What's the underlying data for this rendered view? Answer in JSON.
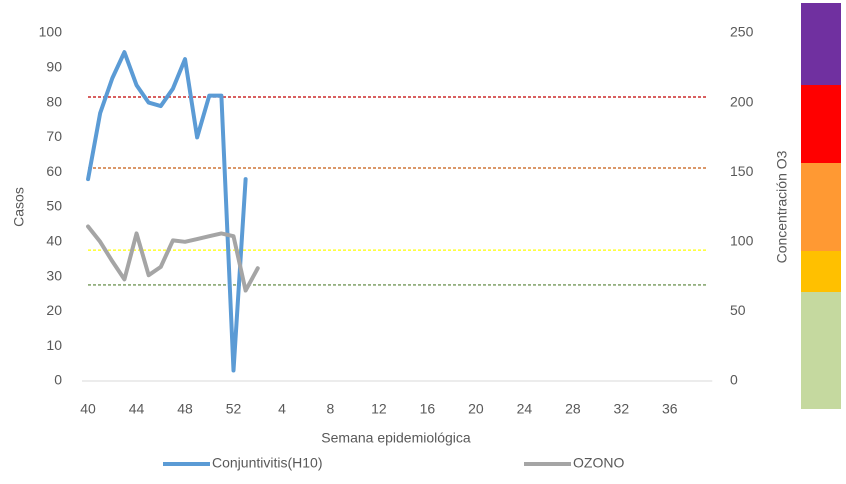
{
  "chart_data": {
    "type": "line",
    "xlabel": "Semana epidemiológica",
    "ylabel": "Casos",
    "y2label": "Concentración O3",
    "categories": [
      "40",
      null,
      null,
      null,
      "44",
      null,
      null,
      null,
      "48",
      null,
      null,
      null,
      "52",
      null,
      null,
      null,
      "4",
      null,
      null,
      null,
      "8",
      null,
      null,
      null,
      "12",
      null,
      null,
      null,
      "16",
      null,
      null,
      null,
      "20",
      null,
      null,
      null,
      "24",
      null,
      null,
      null,
      "28",
      null,
      null,
      null,
      "32",
      null,
      null,
      null,
      "36",
      null,
      null,
      null
    ],
    "series": [
      {
        "name": "Conjuntivitis(H10)",
        "color": "#5b9bd5",
        "values": [
          58,
          77,
          87,
          94.5,
          85,
          80,
          79,
          84,
          92.5,
          70,
          82,
          82,
          3,
          58,
          null,
          null,
          null,
          null,
          null,
          null,
          null,
          null,
          null,
          null,
          null,
          null,
          null,
          null,
          null,
          null,
          null,
          null,
          null,
          null,
          null,
          null,
          null,
          null,
          null,
          null,
          null,
          null,
          null,
          null,
          null,
          null,
          null,
          null,
          null,
          null,
          null,
          null
        ]
      },
      {
        "name": "OZONO",
        "color": "#a5a5a5",
        "axis": "y2",
        "values": [
          111,
          100,
          86,
          73,
          106,
          76,
          82,
          101,
          100,
          102,
          104,
          106,
          104,
          65,
          81,
          null,
          null,
          null,
          null,
          null,
          null,
          null,
          null,
          null,
          null,
          null,
          null,
          null,
          null,
          null,
          null,
          null,
          null,
          null,
          null,
          null,
          null,
          null,
          null,
          null,
          null,
          null,
          null,
          null,
          null,
          null,
          null,
          null,
          null,
          null,
          null,
          null
        ]
      }
    ],
    "reference_lines": [
      {
        "value": 204,
        "color": "#c00000"
      },
      {
        "value": 153,
        "color": "#c55a11"
      },
      {
        "value": 94,
        "color": "#ffff00"
      },
      {
        "value": 69,
        "color": "#548235"
      }
    ],
    "ylim": [
      0,
      100
    ],
    "yticks": [
      0,
      10,
      20,
      30,
      40,
      50,
      60,
      70,
      80,
      90,
      100
    ],
    "y2lim": [
      0,
      250
    ],
    "y2ticks": [
      0,
      50,
      100,
      150,
      200,
      250
    ],
    "grid": false,
    "legend": "bottom"
  }
}
